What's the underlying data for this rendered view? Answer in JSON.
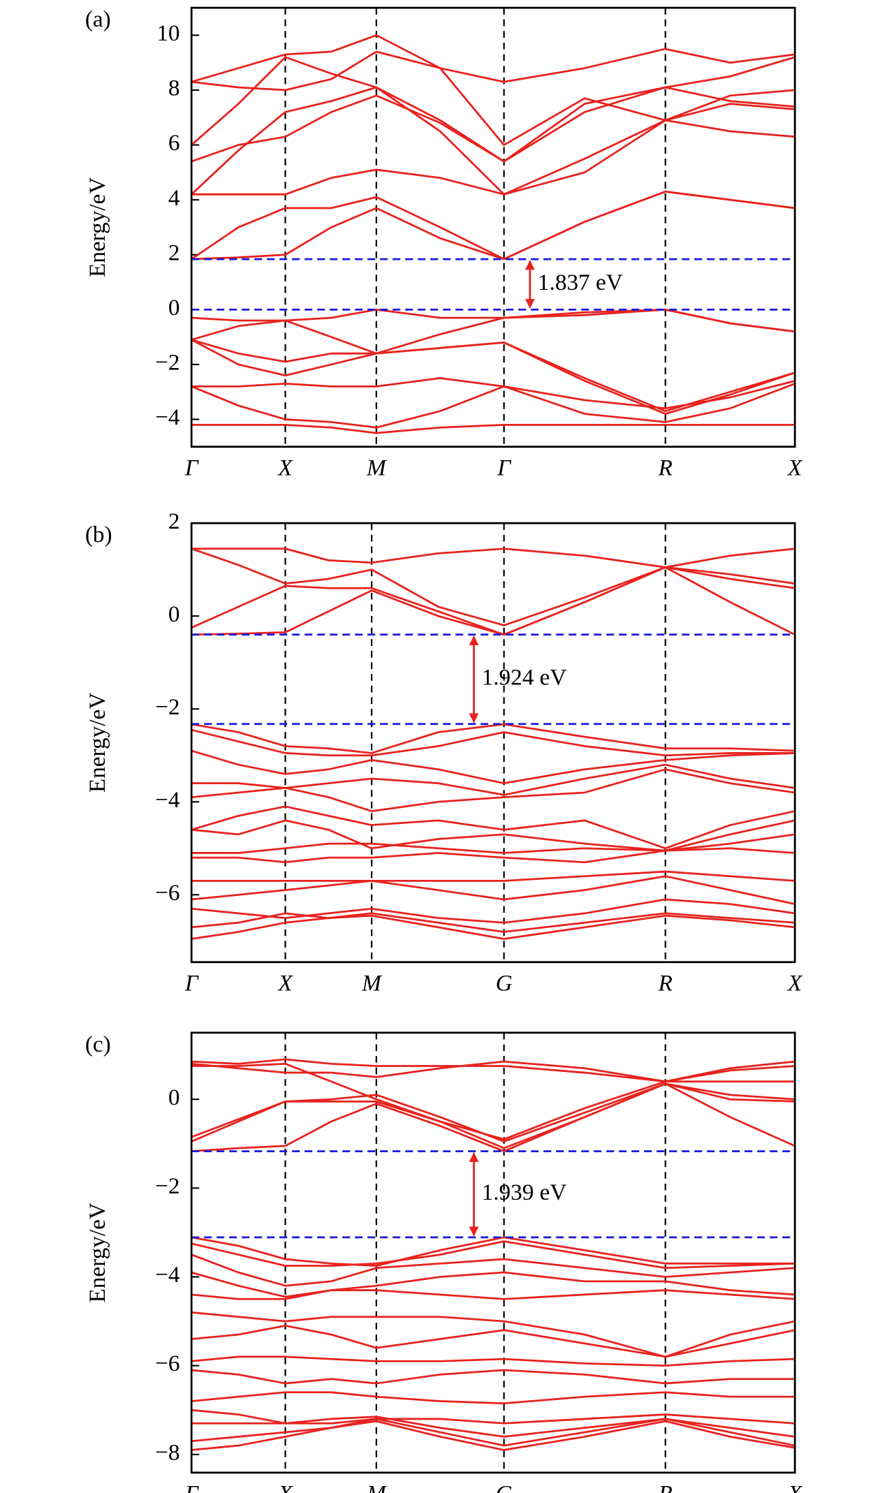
{
  "chart_data": [
    {
      "type": "line",
      "panel_label": "(a)",
      "y_label": "Energy/eV",
      "color": "#e8221e",
      "x": [
        0,
        0.5,
        1,
        1.49,
        1.97,
        2.65,
        3.33,
        4.19,
        5.05,
        5.74,
        6.43
      ],
      "xlim": [
        0,
        6.43
      ],
      "xticks": [
        {
          "value": 0,
          "label": "Γ"
        },
        {
          "value": 1,
          "label": "X"
        },
        {
          "value": 1.97,
          "label": "M"
        },
        {
          "value": 3.33,
          "label": "Γ"
        },
        {
          "value": 5.05,
          "label": "R"
        },
        {
          "value": 6.43,
          "label": "X"
        }
      ],
      "ylim": [
        -5,
        11
      ],
      "yticks": [
        {
          "value": -4,
          "label": "−4"
        },
        {
          "value": -2,
          "label": "−2"
        },
        0,
        2,
        4,
        6,
        8,
        10
      ],
      "grid": true,
      "gap": {
        "values": [
          1.837,
          0
        ],
        "color": "#1a1adb",
        "label": "1.837 eV"
      },
      "series": [
        {
          "values": [
            1.84,
            1.9,
            2.0,
            3.0,
            3.7,
            2.6,
            1.84,
            3.2,
            4.3,
            4.0,
            3.7
          ]
        },
        {
          "values": [
            1.84,
            3.0,
            3.7,
            3.7,
            4.1,
            3.0,
            1.84,
            3.2,
            4.3,
            4.0,
            3.7
          ]
        },
        {
          "values": [
            4.2,
            4.2,
            4.2,
            4.8,
            5.1,
            4.8,
            4.2,
            5.0,
            6.9,
            6.5,
            6.3
          ]
        },
        {
          "values": [
            4.2,
            5.8,
            7.2,
            7.6,
            8.1,
            6.5,
            4.2,
            5.5,
            6.9,
            7.5,
            7.3
          ]
        },
        {
          "values": [
            5.4,
            6.0,
            6.3,
            7.2,
            7.8,
            6.8,
            5.4,
            7.2,
            8.1,
            7.6,
            7.4
          ]
        },
        {
          "values": [
            6.0,
            7.5,
            9.2,
            8.6,
            8.1,
            6.9,
            5.4,
            7.5,
            8.1,
            8.5,
            9.2
          ]
        },
        {
          "values": [
            8.3,
            8.1,
            8.0,
            8.4,
            9.4,
            8.8,
            6.0,
            7.7,
            6.9,
            7.8,
            8.0
          ]
        },
        {
          "values": [
            8.3,
            8.8,
            9.3,
            9.4,
            10.0,
            8.8,
            8.3,
            8.8,
            9.5,
            9.0,
            9.3
          ]
        },
        {
          "values": [
            -0.3,
            -0.4,
            -0.4,
            -0.3,
            0.0,
            -0.3,
            -0.3,
            -0.1,
            0.0,
            -0.5,
            -0.8
          ]
        },
        {
          "values": [
            -1.1,
            -0.6,
            -0.4,
            -1.0,
            -1.6,
            -0.9,
            -0.3,
            -0.2,
            0.0,
            -0.5,
            -0.8
          ]
        },
        {
          "values": [
            -1.1,
            -1.6,
            -1.9,
            -1.6,
            -1.6,
            -1.4,
            -1.2,
            -2.5,
            -3.7,
            -3.0,
            -2.3
          ]
        },
        {
          "values": [
            -1.1,
            -2.0,
            -2.4,
            -2.0,
            -1.6,
            -1.4,
            -1.2,
            -2.6,
            -3.8,
            -3.1,
            -2.3
          ]
        },
        {
          "values": [
            -2.8,
            -2.8,
            -2.7,
            -2.8,
            -2.8,
            -2.5,
            -2.8,
            -3.3,
            -3.6,
            -3.2,
            -2.6
          ]
        },
        {
          "values": [
            -2.8,
            -3.5,
            -4.0,
            -4.1,
            -4.3,
            -3.7,
            -2.8,
            -3.8,
            -4.1,
            -3.6,
            -2.7
          ]
        },
        {
          "values": [
            -4.2,
            -4.2,
            -4.2,
            -4.3,
            -4.5,
            -4.3,
            -4.2,
            -4.2,
            -4.2,
            -4.2,
            -4.2
          ]
        }
      ]
    },
    {
      "type": "line",
      "panel_label": "(b)",
      "y_label": "Energy/eV",
      "color": "#e8221e",
      "x": [
        0,
        0.5,
        1,
        1.46,
        1.92,
        2.63,
        3.33,
        4.19,
        5.05,
        5.74,
        6.43
      ],
      "xlim": [
        0,
        6.43
      ],
      "xticks": [
        {
          "value": 0,
          "label": "Γ"
        },
        {
          "value": 1,
          "label": "X"
        },
        {
          "value": 1.92,
          "label": "M"
        },
        {
          "value": 3.33,
          "label": "G"
        },
        {
          "value": 5.05,
          "label": "R"
        },
        {
          "value": 6.43,
          "label": "X"
        }
      ],
      "ylim": [
        -7.45,
        2
      ],
      "yticks": [
        {
          "value": -6,
          "label": "−6"
        },
        {
          "value": -4,
          "label": "−4"
        },
        {
          "value": -2,
          "label": "−2"
        },
        0,
        2
      ],
      "grid": true,
      "gap": {
        "values": [
          -0.4,
          -2.324
        ],
        "color": "#1a1adb",
        "label": "1.924 eV"
      },
      "series": [
        {
          "values": [
            -0.4,
            -0.38,
            -0.35,
            0.1,
            0.55,
            0.0,
            -0.4,
            0.3,
            1.05,
            0.3,
            -0.4
          ]
        },
        {
          "values": [
            -0.25,
            0.2,
            0.65,
            0.6,
            0.6,
            0.1,
            -0.4,
            0.3,
            1.05,
            0.8,
            0.6
          ]
        },
        {
          "values": [
            1.45,
            1.1,
            0.7,
            0.8,
            1.0,
            0.2,
            -0.2,
            0.4,
            1.05,
            0.9,
            0.7
          ]
        },
        {
          "values": [
            1.45,
            1.45,
            1.45,
            1.2,
            1.15,
            1.35,
            1.45,
            1.3,
            1.05,
            1.3,
            1.45
          ]
        },
        {
          "values": [
            -2.33,
            -2.5,
            -2.8,
            -2.85,
            -2.95,
            -2.5,
            -2.33,
            -2.6,
            -2.85,
            -2.85,
            -2.9
          ]
        },
        {
          "values": [
            -2.45,
            -2.7,
            -2.95,
            -3.0,
            -3.0,
            -2.8,
            -2.5,
            -2.8,
            -3.0,
            -2.95,
            -2.95
          ]
        },
        {
          "values": [
            -2.9,
            -3.2,
            -3.4,
            -3.3,
            -3.1,
            -3.3,
            -3.6,
            -3.3,
            -3.1,
            -3.0,
            -2.95
          ]
        },
        {
          "values": [
            -3.6,
            -3.6,
            -3.7,
            -3.6,
            -3.5,
            -3.6,
            -3.85,
            -3.5,
            -3.2,
            -3.5,
            -3.7
          ]
        },
        {
          "values": [
            -3.9,
            -3.8,
            -3.7,
            -3.9,
            -4.2,
            -4.0,
            -3.9,
            -3.8,
            -3.3,
            -3.6,
            -3.8
          ]
        },
        {
          "values": [
            -4.6,
            -4.3,
            -4.1,
            -4.3,
            -4.5,
            -4.4,
            -4.6,
            -4.4,
            -5.0,
            -4.5,
            -4.2
          ]
        },
        {
          "values": [
            -4.6,
            -4.7,
            -4.4,
            -4.6,
            -5.0,
            -4.8,
            -4.7,
            -4.9,
            -5.05,
            -4.7,
            -4.4
          ]
        },
        {
          "values": [
            -5.1,
            -5.1,
            -5.0,
            -4.9,
            -4.9,
            -5.0,
            -5.1,
            -5.0,
            -5.05,
            -4.9,
            -4.7
          ]
        },
        {
          "values": [
            -5.2,
            -5.2,
            -5.3,
            -5.2,
            -5.2,
            -5.1,
            -5.2,
            -5.3,
            -5.05,
            -5.0,
            -5.1
          ]
        },
        {
          "values": [
            -5.7,
            -5.7,
            -5.7,
            -5.7,
            -5.7,
            -5.7,
            -5.7,
            -5.6,
            -5.5,
            -5.6,
            -5.7
          ]
        },
        {
          "values": [
            -6.1,
            -6.0,
            -5.9,
            -5.8,
            -5.7,
            -5.9,
            -6.1,
            -5.9,
            -5.6,
            -5.9,
            -6.2
          ]
        },
        {
          "values": [
            -6.3,
            -6.4,
            -6.5,
            -6.4,
            -6.3,
            -6.5,
            -6.6,
            -6.4,
            -6.1,
            -6.2,
            -6.4
          ]
        },
        {
          "values": [
            -6.7,
            -6.6,
            -6.4,
            -6.5,
            -6.4,
            -6.6,
            -6.8,
            -6.6,
            -6.4,
            -6.5,
            -6.6
          ]
        },
        {
          "values": [
            -6.95,
            -6.8,
            -6.6,
            -6.5,
            -6.45,
            -6.7,
            -6.95,
            -6.7,
            -6.45,
            -6.55,
            -6.7
          ]
        }
      ]
    },
    {
      "type": "line",
      "panel_label": "(c)",
      "y_label": "Energy/eV",
      "color": "#e8221e",
      "x": [
        0,
        0.5,
        1,
        1.49,
        1.97,
        2.65,
        3.33,
        4.19,
        5.05,
        5.74,
        6.43
      ],
      "xlim": [
        0,
        6.43
      ],
      "xticks": [
        {
          "value": 0,
          "label": "Γ"
        },
        {
          "value": 1,
          "label": "X"
        },
        {
          "value": 1.97,
          "label": "M"
        },
        {
          "value": 3.33,
          "label": "G"
        },
        {
          "value": 5.05,
          "label": "R"
        },
        {
          "value": 6.43,
          "label": "X"
        }
      ],
      "ylim": [
        -8.41,
        1.5
      ],
      "yticks": [
        {
          "value": -8,
          "label": "−8"
        },
        {
          "value": -6,
          "label": "−6"
        },
        {
          "value": -4,
          "label": "−4"
        },
        {
          "value": -2,
          "label": "−2"
        },
        0
      ],
      "grid": true,
      "gap": {
        "values": [
          -1.17,
          -3.109
        ],
        "color": "#1a1adb",
        "label": "1.939 eV"
      },
      "series": [
        {
          "values": [
            -1.17,
            -1.1,
            -1.05,
            -0.5,
            -0.1,
            -0.6,
            -1.17,
            -0.4,
            0.35,
            -0.4,
            -1.05
          ]
        },
        {
          "values": [
            -0.95,
            -0.5,
            -0.05,
            -0.05,
            -0.05,
            -0.5,
            -1.1,
            -0.4,
            0.35,
            0.0,
            -0.05
          ]
        },
        {
          "values": [
            -0.85,
            -0.45,
            -0.05,
            0.0,
            0.1,
            -0.4,
            -0.95,
            -0.3,
            0.35,
            0.1,
            0.0
          ]
        },
        {
          "values": [
            0.75,
            0.75,
            0.8,
            0.4,
            0.0,
            -0.5,
            -0.9,
            -0.2,
            0.4,
            0.4,
            0.4
          ]
        },
        {
          "values": [
            0.85,
            0.8,
            0.9,
            0.8,
            0.75,
            0.75,
            0.75,
            0.6,
            0.4,
            0.7,
            0.85
          ]
        },
        {
          "values": [
            0.8,
            0.7,
            0.6,
            0.6,
            0.5,
            0.7,
            0.85,
            0.7,
            0.4,
            0.65,
            0.75
          ]
        },
        {
          "values": [
            -3.11,
            -3.3,
            -3.6,
            -3.7,
            -3.75,
            -3.4,
            -3.11,
            -3.4,
            -3.7,
            -3.7,
            -3.7
          ]
        },
        {
          "values": [
            -3.25,
            -3.5,
            -3.75,
            -3.75,
            -3.7,
            -3.5,
            -3.2,
            -3.5,
            -3.8,
            -3.75,
            -3.7
          ]
        },
        {
          "values": [
            -3.5,
            -3.9,
            -4.2,
            -4.1,
            -3.8,
            -3.7,
            -3.6,
            -3.8,
            -4.0,
            -3.9,
            -3.8
          ]
        },
        {
          "values": [
            -3.9,
            -4.2,
            -4.45,
            -4.3,
            -4.2,
            -4.0,
            -3.9,
            -4.1,
            -4.1,
            -4.3,
            -4.4
          ]
        },
        {
          "values": [
            -4.4,
            -4.5,
            -4.5,
            -4.3,
            -4.3,
            -4.4,
            -4.5,
            -4.4,
            -4.3,
            -4.4,
            -4.5
          ]
        },
        {
          "values": [
            -4.8,
            -4.9,
            -5.0,
            -4.9,
            -4.9,
            -4.9,
            -5.0,
            -5.3,
            -5.8,
            -5.3,
            -5.0
          ]
        },
        {
          "values": [
            -5.4,
            -5.3,
            -5.1,
            -5.3,
            -5.6,
            -5.4,
            -5.2,
            -5.5,
            -5.8,
            -5.5,
            -5.2
          ]
        },
        {
          "values": [
            -5.9,
            -5.8,
            -5.8,
            -5.85,
            -5.9,
            -5.9,
            -5.85,
            -5.95,
            -6.0,
            -5.9,
            -5.85
          ]
        },
        {
          "values": [
            -6.1,
            -6.2,
            -6.4,
            -6.3,
            -6.4,
            -6.2,
            -6.1,
            -6.2,
            -6.4,
            -6.3,
            -6.3
          ]
        },
        {
          "values": [
            -6.8,
            -6.7,
            -6.6,
            -6.6,
            -6.7,
            -6.8,
            -6.85,
            -6.7,
            -6.6,
            -6.7,
            -6.7
          ]
        },
        {
          "values": [
            -7.0,
            -7.1,
            -7.3,
            -7.3,
            -7.2,
            -7.2,
            -7.3,
            -7.2,
            -7.1,
            -7.2,
            -7.3
          ]
        },
        {
          "values": [
            -7.3,
            -7.3,
            -7.3,
            -7.2,
            -7.15,
            -7.4,
            -7.6,
            -7.4,
            -7.2,
            -7.4,
            -7.6
          ]
        },
        {
          "values": [
            -7.7,
            -7.6,
            -7.5,
            -7.4,
            -7.2,
            -7.5,
            -7.8,
            -7.5,
            -7.2,
            -7.5,
            -7.8
          ]
        },
        {
          "values": [
            -7.9,
            -7.8,
            -7.6,
            -7.4,
            -7.25,
            -7.6,
            -7.9,
            -7.6,
            -7.25,
            -7.6,
            -7.85
          ]
        }
      ]
    }
  ]
}
